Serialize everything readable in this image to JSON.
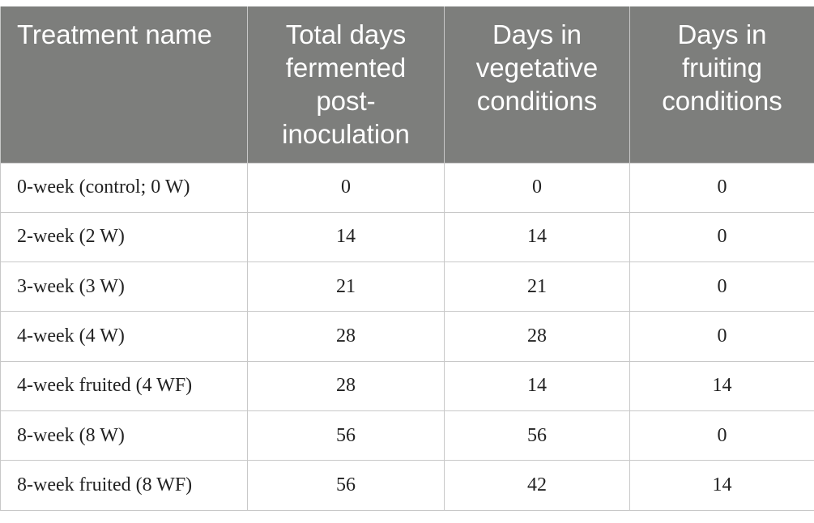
{
  "table": {
    "headers": [
      "Treatment name",
      "Total days fermented post-inoculation",
      "Days in vegetative conditions",
      "Days in fruiting conditions"
    ],
    "rows": [
      [
        "0-week (control; 0 W)",
        "0",
        "0",
        "0"
      ],
      [
        "2-week (2 W)",
        "14",
        "14",
        "0"
      ],
      [
        "3-week (3 W)",
        "21",
        "21",
        "0"
      ],
      [
        "4-week (4 W)",
        "28",
        "28",
        "0"
      ],
      [
        "4-week fruited (4 WF)",
        "28",
        "14",
        "14"
      ],
      [
        "8-week (8 W)",
        "56",
        "56",
        "0"
      ],
      [
        "8-week fruited (8 WF)",
        "56",
        "42",
        "14"
      ]
    ]
  },
  "colors": {
    "header_bg": "#7d7e7c",
    "header_text": "#ffffff",
    "body_text": "#222222",
    "border": "#c8c8c8"
  }
}
